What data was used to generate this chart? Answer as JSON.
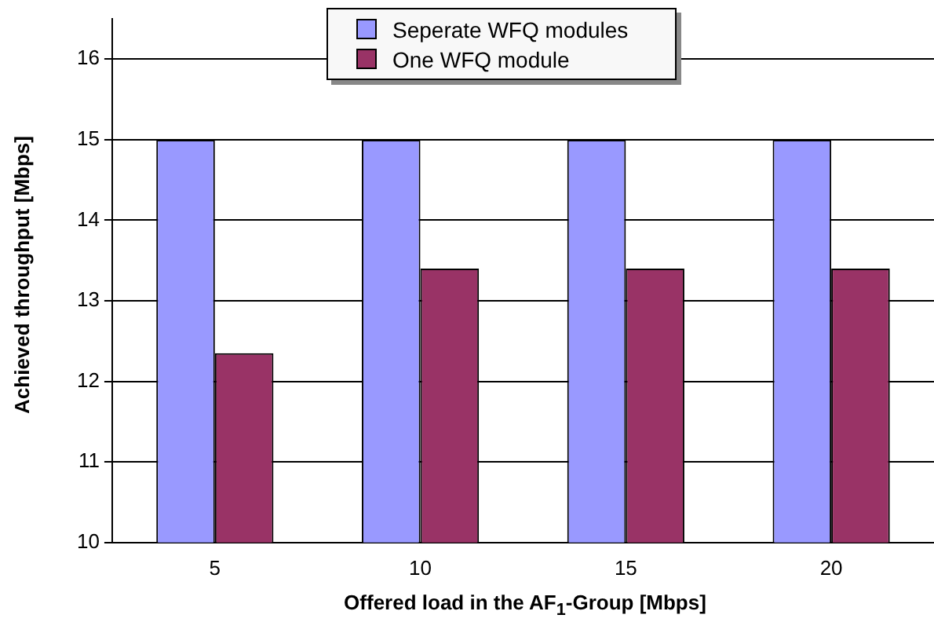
{
  "chart_data": {
    "type": "bar",
    "xlabel": "Offered load in the AF$_{1}$-Group  [Mbps]",
    "ylabel": "Achieved throughput  [Mbps]",
    "categories": [
      "5",
      "10",
      "15",
      "20"
    ],
    "series": [
      {
        "name": "Seperate WFQ modules",
        "color": "#9999ff",
        "values": [
          15,
          15,
          15,
          15
        ]
      },
      {
        "name": "One WFQ module",
        "color": "#993366",
        "values": [
          12.35,
          13.4,
          13.4,
          13.4
        ]
      }
    ],
    "ylim": [
      10,
      16.5
    ],
    "yticks": [
      10,
      11,
      12,
      13,
      14,
      15,
      16
    ],
    "grid": "y",
    "legend": "top"
  }
}
